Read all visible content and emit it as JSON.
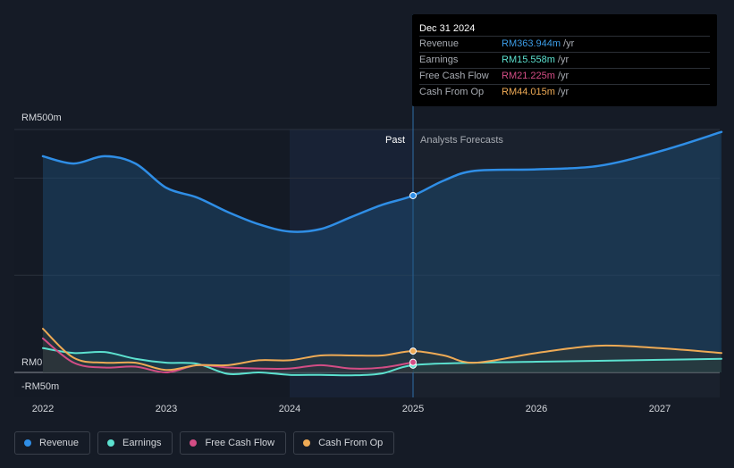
{
  "tooltip": {
    "date": "Dec 31 2024",
    "rows": [
      {
        "label": "Revenue",
        "value": "RM363.944m",
        "unit": "/yr",
        "color": "#3b9ce6"
      },
      {
        "label": "Earnings",
        "value": "RM15.558m",
        "unit": "/yr",
        "color": "#5ce1cf"
      },
      {
        "label": "Free Cash Flow",
        "value": "RM21.225m",
        "unit": "/yr",
        "color": "#d34d85"
      },
      {
        "label": "Cash From Op",
        "value": "RM44.015m",
        "unit": "/yr",
        "color": "#eeaa55"
      }
    ]
  },
  "legend": [
    {
      "label": "Revenue",
      "color": "#2f8ee6"
    },
    {
      "label": "Earnings",
      "color": "#5ce1cf"
    },
    {
      "label": "Free Cash Flow",
      "color": "#d34d85"
    },
    {
      "label": "Cash From Op",
      "color": "#eeaa55"
    }
  ],
  "chart_data": {
    "type": "line",
    "title": "",
    "xlabel": "",
    "ylabel": "",
    "y_tick_labels": [
      "RM500m",
      "RM0",
      "-RM50m"
    ],
    "x_tick_labels": [
      "2022",
      "2023",
      "2024",
      "2025",
      "2026",
      "2027"
    ],
    "section_labels": {
      "past": "Past",
      "forecast": "Analysts Forecasts"
    },
    "divider_x": 2025.0,
    "xlim": [
      2021.75,
      2027.5
    ],
    "ylim": [
      -50,
      500
    ],
    "grid": true,
    "series": [
      {
        "name": "Revenue",
        "color": "#2f8ee6",
        "x": [
          2022.0,
          2022.25,
          2022.5,
          2022.75,
          2023.0,
          2023.25,
          2023.5,
          2023.75,
          2024.0,
          2024.25,
          2024.5,
          2024.75,
          2025.0,
          2025.25,
          2025.5,
          2026.0,
          2026.5,
          2027.0,
          2027.5
        ],
        "y": [
          445,
          430,
          445,
          430,
          380,
          360,
          330,
          305,
          290,
          295,
          320,
          345,
          364,
          395,
          415,
          418,
          425,
          455,
          495
        ]
      },
      {
        "name": "Earnings",
        "color": "#5ce1cf",
        "x": [
          2022.0,
          2022.25,
          2022.5,
          2022.75,
          2023.0,
          2023.25,
          2023.5,
          2023.75,
          2024.0,
          2024.25,
          2024.5,
          2024.75,
          2025.0,
          2025.5,
          2026.0,
          2026.5,
          2027.0,
          2027.5
        ],
        "y": [
          50,
          40,
          42,
          28,
          20,
          18,
          -3,
          0,
          -5,
          -5,
          -6,
          -2,
          15,
          20,
          22,
          24,
          26,
          28
        ]
      },
      {
        "name": "Free Cash Flow",
        "color": "#d34d85",
        "x": [
          2022.0,
          2022.25,
          2022.5,
          2022.75,
          2023.0,
          2023.25,
          2023.5,
          2023.75,
          2024.0,
          2024.25,
          2024.5,
          2024.75,
          2025.0
        ],
        "y": [
          70,
          20,
          10,
          12,
          0,
          15,
          10,
          8,
          8,
          15,
          8,
          10,
          21
        ]
      },
      {
        "name": "Cash From Op",
        "color": "#eeaa55",
        "x": [
          2022.0,
          2022.25,
          2022.5,
          2022.75,
          2023.0,
          2023.25,
          2023.5,
          2023.75,
          2024.0,
          2024.25,
          2024.5,
          2024.75,
          2025.0,
          2025.25,
          2025.5,
          2026.0,
          2026.5,
          2027.0,
          2027.5
        ],
        "y": [
          90,
          30,
          20,
          20,
          5,
          15,
          15,
          25,
          25,
          35,
          35,
          35,
          44,
          35,
          20,
          40,
          55,
          50,
          40
        ]
      }
    ]
  }
}
